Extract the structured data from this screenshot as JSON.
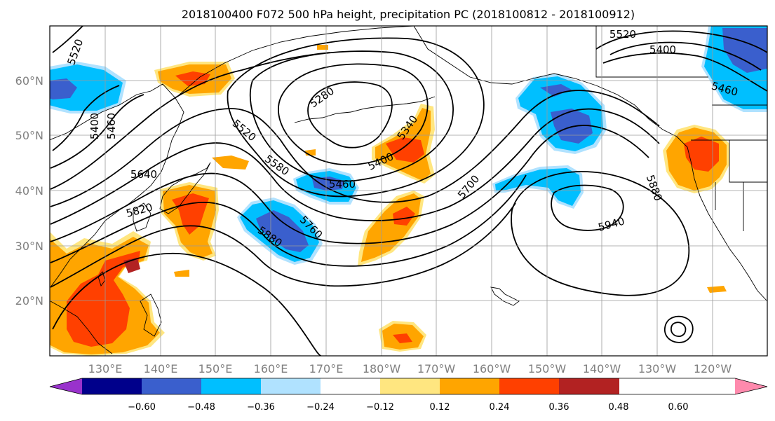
{
  "title": "2018100400 F072 500 hPa height, precipitation PC (2018100812 - 2018100912)",
  "lat_labels": [
    "60°N",
    "50°N",
    "40°N",
    "30°N",
    "20°N"
  ],
  "lon_labels": [
    "130°E",
    "140°E",
    "150°E",
    "160°E",
    "170°E",
    "180°W",
    "170°W",
    "160°W",
    "150°W",
    "140°W",
    "130°W",
    "120°W"
  ],
  "contour_labels": [
    "5520",
    "5400",
    "5460",
    "5280",
    "5520",
    "5580",
    "5340",
    "5400",
    "5460",
    "5640",
    "5820",
    "5700",
    "5760",
    "5880",
    "5880",
    "5940",
    "5520",
    "5400",
    "5460"
  ],
  "colorbar": {
    "ticks": [
      "−0.60",
      "−0.48",
      "−0.36",
      "−0.24",
      "−0.12",
      "0.12",
      "0.24",
      "0.36",
      "0.48",
      "0.60"
    ],
    "colors": [
      "#9932cc",
      "#00008b",
      "#3a5fcd",
      "#00bfff",
      "#b0e2ff",
      "#ffffff",
      "#ffe680",
      "#ffa500",
      "#ff4000",
      "#b22222",
      "#ff8aad"
    ]
  },
  "colors": {
    "orange": "#ffa500",
    "red_orange": "#ff4000",
    "dark_red": "#b22222",
    "light_yellow": "#ffe680",
    "sky_blue": "#00bfff",
    "light_blue": "#b0e2ff",
    "royal_blue": "#3a5fcd"
  }
}
